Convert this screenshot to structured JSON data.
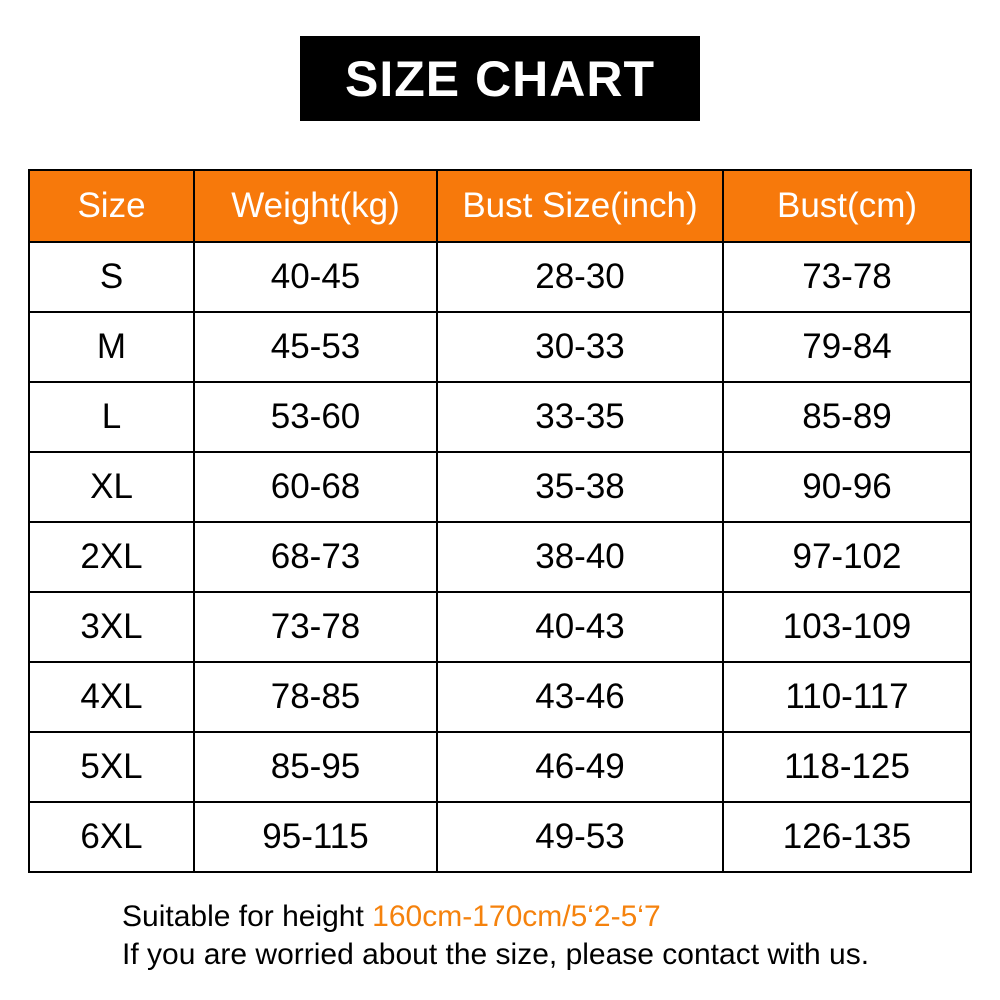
{
  "banner": {
    "title": "SIZE CHART"
  },
  "table": {
    "headers": [
      "Size",
      "Weight(kg)",
      "Bust Size(inch)",
      "Bust(cm)"
    ],
    "rows": [
      {
        "size": "S",
        "weight_kg": "40-45",
        "bust_inch": "28-30",
        "bust_cm": "73-78"
      },
      {
        "size": "M",
        "weight_kg": "45-53",
        "bust_inch": "30-33",
        "bust_cm": "79-84"
      },
      {
        "size": "L",
        "weight_kg": "53-60",
        "bust_inch": "33-35",
        "bust_cm": "85-89"
      },
      {
        "size": "XL",
        "weight_kg": "60-68",
        "bust_inch": "35-38",
        "bust_cm": "90-96"
      },
      {
        "size": "2XL",
        "weight_kg": "68-73",
        "bust_inch": "38-40",
        "bust_cm": "97-102"
      },
      {
        "size": "3XL",
        "weight_kg": "73-78",
        "bust_inch": "40-43",
        "bust_cm": "103-109"
      },
      {
        "size": "4XL",
        "weight_kg": "78-85",
        "bust_inch": "43-46",
        "bust_cm": "110-117"
      },
      {
        "size": "5XL",
        "weight_kg": "85-95",
        "bust_inch": "46-49",
        "bust_cm": "118-125"
      },
      {
        "size": "6XL",
        "weight_kg": "95-115",
        "bust_inch": "49-53",
        "bust_cm": "126-135"
      }
    ]
  },
  "footer": {
    "line1_prefix": "Suitable for height ",
    "line1_highlight": "160cm-170cm/5‘2-5‘7",
    "line2": "If you are worried about the size, please contact with us."
  },
  "colors": {
    "header_bg": "#F7790B",
    "header_text": "#FFFFFF",
    "accent": "#F5820D",
    "banner_bg": "#000000",
    "banner_text": "#FFFFFF",
    "border_color": "#000000"
  }
}
